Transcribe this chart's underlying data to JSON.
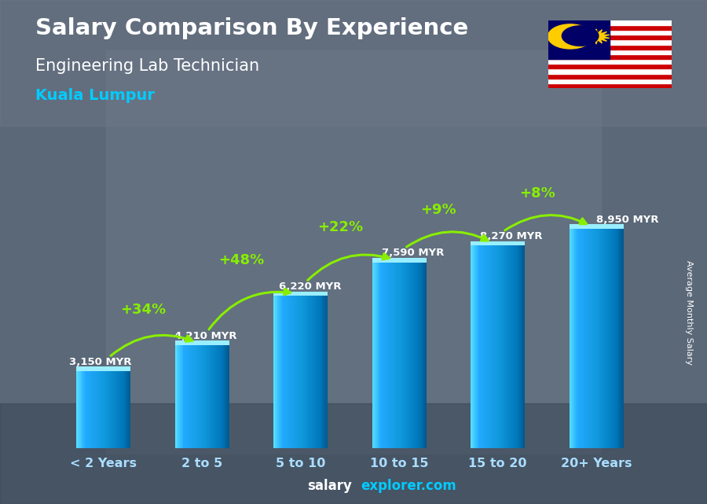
{
  "title": "Salary Comparison By Experience",
  "subtitle": "Engineering Lab Technician",
  "location": "Kuala Lumpur",
  "ylabel": "Average Monthly Salary",
  "footer_bold": "salary",
  "footer_cyan": "explorer.com",
  "categories": [
    "< 2 Years",
    "2 to 5",
    "5 to 10",
    "10 to 15",
    "15 to 20",
    "20+ Years"
  ],
  "values": [
    3150,
    4210,
    6220,
    7590,
    8270,
    8950
  ],
  "value_labels": [
    "3,150 MYR",
    "4,210 MYR",
    "6,220 MYR",
    "7,590 MYR",
    "8,270 MYR",
    "8,950 MYR"
  ],
  "pct_labels": [
    "+34%",
    "+48%",
    "+22%",
    "+9%",
    "+8%"
  ],
  "bar_color_left": "#55ddff",
  "bar_color_mid": "#1199cc",
  "bar_color_right": "#006699",
  "bar_color_top": "#88eeff",
  "title_color": "#ffffff",
  "subtitle_color": "#ffffff",
  "location_color": "#00ccff",
  "value_label_color": "#ffffff",
  "pct_color": "#88ee00",
  "arrow_color": "#88ee00",
  "bg_color": "#607080",
  "bar_width": 0.55,
  "ylim": [
    0,
    11500
  ],
  "n_bars": 6,
  "flag_stripes": [
    "#cc0001",
    "#ffffff",
    "#cc0001",
    "#ffffff",
    "#cc0001",
    "#ffffff",
    "#cc0001",
    "#ffffff",
    "#cc0001",
    "#ffffff",
    "#cc0001",
    "#ffffff",
    "#cc0001",
    "#ffffff"
  ],
  "flag_blue": "#010066",
  "flag_yellow": "#ffcc00"
}
